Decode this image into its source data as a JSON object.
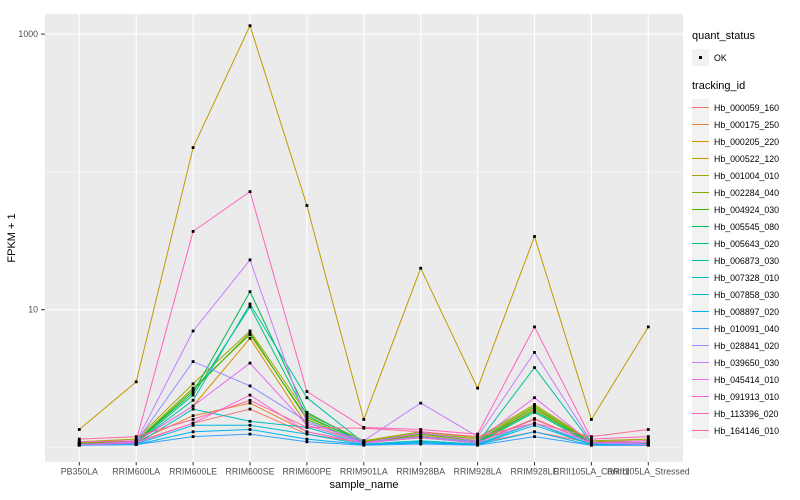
{
  "figure": {
    "panel_bg": "#EBEBEB",
    "grid_color": "#FFFFFF",
    "axis_text_color": "#4D4D4D",
    "tick_color": "#333333",
    "point_color": "#000000",
    "legend_key_bg": "#F2F2F2"
  },
  "axes": {
    "x_label": "sample_name",
    "y_label": "FPKM + 1",
    "y_ticks": [
      {
        "label": "10",
        "value": 10
      },
      {
        "label": "1000",
        "value": 1000
      }
    ],
    "y_minor": [
      1,
      100
    ]
  },
  "legend": {
    "quant_title": "quant_status",
    "quant_items": [
      {
        "label": "OK"
      }
    ],
    "tracking_title": "tracking_id"
  },
  "chart_data": {
    "type": "line",
    "title": "",
    "xlabel": "sample_name",
    "ylabel": "FPKM + 1",
    "y_scale": "log10",
    "ylim": [
      0.7,
      1400
    ],
    "grid": true,
    "legend_position": "right",
    "quant_status": "OK",
    "x_categories": [
      "PB350LA",
      "RRIM600LA",
      "RRIM600LE",
      "RRIM600SE",
      "RRIM600PE",
      "RRIM901LA",
      "RRIM928BA",
      "RRIM928LA",
      "RRIM928LE",
      "RRII105LA_Control",
      "RRII105LA_Stressed"
    ],
    "series": [
      {
        "name": "Hb_000059_160",
        "color": "#F8766D",
        "values": [
          1.08,
          1.1,
          1.5,
          1.9,
          1.25,
          1.08,
          1.18,
          1.08,
          1.3,
          1.08,
          1.08
        ]
      },
      {
        "name": "Hb_000175_250",
        "color": "#EA8331",
        "values": [
          1.06,
          1.1,
          1.7,
          2.1,
          1.3,
          1.08,
          1.2,
          1.1,
          1.62,
          1.08,
          1.08
        ]
      },
      {
        "name": "Hb_000205_220",
        "color": "#D89000",
        "values": [
          1.06,
          1.1,
          2.0,
          6.2,
          1.45,
          1.1,
          1.22,
          1.1,
          1.9,
          1.1,
          1.12
        ]
      },
      {
        "name": "Hb_000522_120",
        "color": "#C09B00",
        "values": [
          1.35,
          3.0,
          150,
          1150,
          57,
          1.6,
          20,
          2.7,
          34,
          1.6,
          7.5
        ]
      },
      {
        "name": "Hb_001004_010",
        "color": "#A3A500",
        "values": [
          1.1,
          1.15,
          2.9,
          7.0,
          1.75,
          1.12,
          1.3,
          1.18,
          2.05,
          1.12,
          1.15
        ]
      },
      {
        "name": "Hb_002284_040",
        "color": "#7CAE00",
        "values": [
          1.08,
          1.12,
          2.7,
          6.6,
          1.65,
          1.1,
          1.28,
          1.15,
          2.0,
          1.1,
          1.12
        ]
      },
      {
        "name": "Hb_004924_030",
        "color": "#39B600",
        "values": [
          1.06,
          1.1,
          2.6,
          6.8,
          1.6,
          1.08,
          1.25,
          1.12,
          1.95,
          1.08,
          1.08
        ]
      },
      {
        "name": "Hb_005545_080",
        "color": "#00BB4E",
        "values": [
          1.06,
          1.1,
          2.5,
          13.5,
          1.8,
          1.08,
          1.2,
          1.1,
          1.85,
          1.08,
          1.08
        ]
      },
      {
        "name": "Hb_005643_020",
        "color": "#00BF7D",
        "values": [
          1.05,
          1.08,
          2.4,
          10.5,
          1.7,
          1.08,
          1.18,
          1.08,
          1.8,
          1.06,
          1.06
        ]
      },
      {
        "name": "Hb_006873_030",
        "color": "#00C1A3",
        "values": [
          1.05,
          1.08,
          2.2,
          11.0,
          2.3,
          1.08,
          1.18,
          1.08,
          3.8,
          1.08,
          1.08
        ]
      },
      {
        "name": "Hb_007328_010",
        "color": "#00BFC4",
        "values": [
          1.05,
          1.06,
          1.9,
          1.55,
          1.4,
          1.06,
          1.12,
          1.06,
          1.5,
          1.05,
          1.05
        ]
      },
      {
        "name": "Hb_007858_030",
        "color": "#00BAE0",
        "values": [
          1.05,
          1.06,
          1.45,
          1.45,
          1.25,
          1.05,
          1.1,
          1.05,
          1.45,
          1.05,
          1.05
        ]
      },
      {
        "name": "Hb_008897_020",
        "color": "#00B0F6",
        "values": [
          1.04,
          1.05,
          1.3,
          1.35,
          1.15,
          1.05,
          1.08,
          1.05,
          1.3,
          1.04,
          1.04
        ]
      },
      {
        "name": "Hb_010091_040",
        "color": "#35A2FF",
        "values": [
          1.04,
          1.05,
          1.2,
          1.25,
          1.1,
          1.04,
          1.06,
          1.04,
          1.2,
          1.04,
          1.04
        ]
      },
      {
        "name": "Hb_028841_020",
        "color": "#9590FF",
        "values": [
          1.05,
          1.1,
          4.2,
          2.8,
          1.55,
          1.08,
          1.2,
          1.1,
          1.5,
          1.08,
          1.05
        ]
      },
      {
        "name": "Hb_039650_030",
        "color": "#C77CFF",
        "values": [
          1.05,
          1.1,
          7.0,
          23,
          1.5,
          1.12,
          2.1,
          1.2,
          4.9,
          1.1,
          1.05
        ]
      },
      {
        "name": "Hb_045414_010",
        "color": "#E76BF3",
        "values": [
          1.05,
          1.1,
          2.0,
          4.1,
          1.45,
          1.08,
          1.28,
          1.12,
          2.3,
          1.08,
          1.08
        ]
      },
      {
        "name": "Hb_091913_010",
        "color": "#FA62DB",
        "values": [
          1.05,
          1.08,
          1.5,
          2.4,
          1.3,
          1.08,
          1.18,
          1.08,
          1.6,
          1.08,
          1.12
        ]
      },
      {
        "name": "Hb_113396_020",
        "color": "#FF62BC",
        "values": [
          1.1,
          1.12,
          37,
          72,
          2.55,
          1.4,
          1.35,
          1.25,
          7.5,
          1.15,
          1.2
        ]
      },
      {
        "name": "Hb_164146_010",
        "color": "#FF6A98",
        "values": [
          1.15,
          1.2,
          1.6,
          2.2,
          1.4,
          1.38,
          1.3,
          1.2,
          1.5,
          1.2,
          1.35
        ]
      }
    ]
  }
}
